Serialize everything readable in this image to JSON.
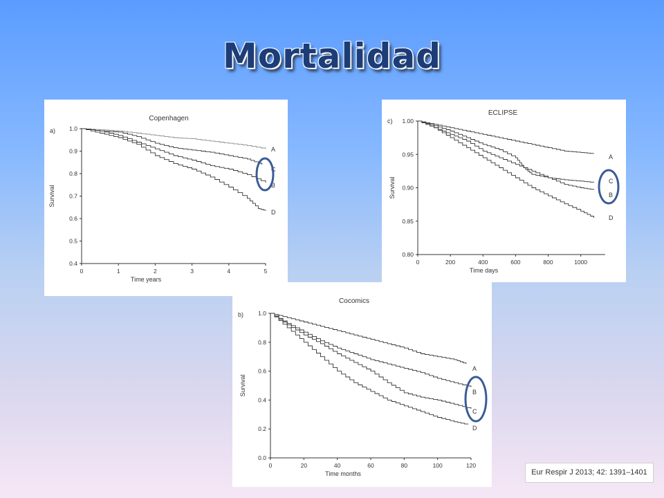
{
  "slide": {
    "title": "Mortalidad"
  },
  "citation": "Eur Respir J 2013; 42: 1391–1401",
  "colors": {
    "title": "#1c3d78",
    "highlight_ellipse": "#3a5b96",
    "curve": "#333333",
    "curve_light": "#888888"
  },
  "chart_data": [
    {
      "type": "line",
      "panel_label": "a)",
      "title": "Copenhagen",
      "xlabel": "Time years",
      "ylabel": "Survival",
      "xlim": [
        0,
        5
      ],
      "ylim": [
        0.4,
        1.0
      ],
      "xticks": [
        "0",
        "1",
        "2",
        "3",
        "4",
        "5"
      ],
      "yticks": [
        "0.4",
        "0.5",
        "0.6",
        "0.7",
        "0.8",
        "0.9",
        "1.0"
      ],
      "xtick_values": [
        0,
        1,
        2,
        3,
        4,
        5
      ],
      "ytick_values": [
        0.4,
        0.5,
        0.6,
        0.7,
        0.8,
        0.9,
        1.0
      ],
      "highlight": [
        "C",
        "B"
      ],
      "series": [
        {
          "name": "A",
          "points": [
            [
              0,
              1.0
            ],
            [
              0.5,
              0.995
            ],
            [
              1,
              0.99
            ],
            [
              1.5,
              0.98
            ],
            [
              2,
              0.97
            ],
            [
              2.5,
              0.96
            ],
            [
              3,
              0.955
            ],
            [
              3.5,
              0.945
            ],
            [
              4,
              0.935
            ],
            [
              4.5,
              0.925
            ],
            [
              5,
              0.91
            ]
          ]
        },
        {
          "name": "C",
          "points": [
            [
              0,
              1.0
            ],
            [
              0.5,
              0.99
            ],
            [
              1,
              0.985
            ],
            [
              1.5,
              0.965
            ],
            [
              2,
              0.935
            ],
            [
              2.5,
              0.915
            ],
            [
              3,
              0.905
            ],
            [
              3.5,
              0.895
            ],
            [
              4,
              0.88
            ],
            [
              4.5,
              0.865
            ],
            [
              4.9,
              0.84
            ]
          ]
        },
        {
          "name": "B",
          "points": [
            [
              0,
              1.0
            ],
            [
              0.5,
              0.99
            ],
            [
              1,
              0.97
            ],
            [
              1.5,
              0.94
            ],
            [
              2,
              0.91
            ],
            [
              2.5,
              0.88
            ],
            [
              3,
              0.86
            ],
            [
              3.5,
              0.835
            ],
            [
              4,
              0.82
            ],
            [
              4.5,
              0.795
            ],
            [
              5,
              0.76
            ]
          ]
        },
        {
          "name": "D",
          "points": [
            [
              0,
              1.0
            ],
            [
              0.5,
              0.98
            ],
            [
              1,
              0.96
            ],
            [
              1.5,
              0.93
            ],
            [
              2,
              0.88
            ],
            [
              2.5,
              0.845
            ],
            [
              3,
              0.82
            ],
            [
              3.5,
              0.785
            ],
            [
              4,
              0.74
            ],
            [
              4.5,
              0.69
            ],
            [
              4.8,
              0.645
            ],
            [
              5,
              0.635
            ]
          ]
        }
      ]
    },
    {
      "type": "line",
      "panel_label": "c)",
      "title": "ECLIPSE",
      "xlabel": "Time days",
      "ylabel": "Survival",
      "xlim": [
        0,
        1150
      ],
      "ylim": [
        0.8,
        1.0
      ],
      "xticks": [
        "0",
        "200",
        "400",
        "600",
        "800",
        "1000"
      ],
      "yticks": [
        "0.80",
        "0.85",
        "0.90",
        "0.95",
        "1.00"
      ],
      "xtick_values": [
        0,
        200,
        400,
        600,
        800,
        1000
      ],
      "ytick_values": [
        0.8,
        0.85,
        0.9,
        0.95,
        1.0
      ],
      "highlight": [
        "C",
        "B"
      ],
      "series": [
        {
          "name": "A",
          "points": [
            [
              0,
              1.0
            ],
            [
              100,
              0.995
            ],
            [
              200,
              0.99
            ],
            [
              300,
              0.985
            ],
            [
              400,
              0.98
            ],
            [
              500,
              0.975
            ],
            [
              600,
              0.97
            ],
            [
              700,
              0.965
            ],
            [
              800,
              0.96
            ],
            [
              900,
              0.955
            ],
            [
              1000,
              0.953
            ],
            [
              1080,
              0.951
            ]
          ]
        },
        {
          "name": "C",
          "points": [
            [
              0,
              1.0
            ],
            [
              100,
              0.993
            ],
            [
              200,
              0.985
            ],
            [
              300,
              0.975
            ],
            [
              400,
              0.965
            ],
            [
              500,
              0.957
            ],
            [
              600,
              0.945
            ],
            [
              650,
              0.93
            ],
            [
              700,
              0.92
            ],
            [
              800,
              0.915
            ],
            [
              900,
              0.912
            ],
            [
              1000,
              0.91
            ],
            [
              1080,
              0.908
            ]
          ]
        },
        {
          "name": "B",
          "points": [
            [
              0,
              1.0
            ],
            [
              100,
              0.99
            ],
            [
              200,
              0.98
            ],
            [
              300,
              0.97
            ],
            [
              400,
              0.955
            ],
            [
              500,
              0.945
            ],
            [
              600,
              0.935
            ],
            [
              700,
              0.925
            ],
            [
              800,
              0.915
            ],
            [
              900,
              0.905
            ],
            [
              1000,
              0.9
            ],
            [
              1080,
              0.897
            ]
          ]
        },
        {
          "name": "D",
          "points": [
            [
              0,
              1.0
            ],
            [
              100,
              0.99
            ],
            [
              200,
              0.975
            ],
            [
              300,
              0.96
            ],
            [
              400,
              0.945
            ],
            [
              500,
              0.93
            ],
            [
              600,
              0.915
            ],
            [
              700,
              0.9
            ],
            [
              800,
              0.888
            ],
            [
              900,
              0.876
            ],
            [
              1000,
              0.865
            ],
            [
              1080,
              0.855
            ]
          ]
        }
      ]
    },
    {
      "type": "line",
      "panel_label": "b)",
      "title": "Cocomics",
      "xlabel": "Time months",
      "ylabel": "Survival",
      "xlim": [
        0,
        120
      ],
      "ylim": [
        0.0,
        1.0
      ],
      "xticks": [
        "0",
        "20",
        "40",
        "60",
        "80",
        "100",
        "120"
      ],
      "yticks": [
        "0.0",
        "0.2",
        "0.4",
        "0.6",
        "0.8",
        "1.0"
      ],
      "xtick_values": [
        0,
        20,
        40,
        60,
        80,
        100,
        120
      ],
      "ytick_values": [
        0.0,
        0.2,
        0.4,
        0.6,
        0.8,
        1.0
      ],
      "highlight": [
        "B",
        "C"
      ],
      "series": [
        {
          "name": "A",
          "points": [
            [
              0,
              1.0
            ],
            [
              10,
              0.97
            ],
            [
              20,
              0.94
            ],
            [
              30,
              0.91
            ],
            [
              40,
              0.88
            ],
            [
              50,
              0.85
            ],
            [
              60,
              0.82
            ],
            [
              70,
              0.79
            ],
            [
              80,
              0.76
            ],
            [
              90,
              0.72
            ],
            [
              100,
              0.7
            ],
            [
              110,
              0.68
            ],
            [
              117,
              0.65
            ]
          ]
        },
        {
          "name": "B",
          "points": [
            [
              0,
              1.0
            ],
            [
              10,
              0.93
            ],
            [
              20,
              0.87
            ],
            [
              30,
              0.81
            ],
            [
              40,
              0.76
            ],
            [
              50,
              0.72
            ],
            [
              60,
              0.68
            ],
            [
              70,
              0.65
            ],
            [
              80,
              0.62
            ],
            [
              90,
              0.59
            ],
            [
              100,
              0.55
            ],
            [
              110,
              0.52
            ],
            [
              120,
              0.49
            ]
          ]
        },
        {
          "name": "C",
          "points": [
            [
              0,
              1.0
            ],
            [
              10,
              0.92
            ],
            [
              20,
              0.85
            ],
            [
              30,
              0.79
            ],
            [
              40,
              0.72
            ],
            [
              50,
              0.66
            ],
            [
              60,
              0.6
            ],
            [
              70,
              0.52
            ],
            [
              80,
              0.45
            ],
            [
              90,
              0.42
            ],
            [
              100,
              0.4
            ],
            [
              110,
              0.37
            ],
            [
              120,
              0.34
            ]
          ]
        },
        {
          "name": "D",
          "points": [
            [
              0,
              1.0
            ],
            [
              10,
              0.9
            ],
            [
              20,
              0.8
            ],
            [
              30,
              0.7
            ],
            [
              40,
              0.6
            ],
            [
              50,
              0.52
            ],
            [
              60,
              0.46
            ],
            [
              70,
              0.4
            ],
            [
              80,
              0.36
            ],
            [
              90,
              0.32
            ],
            [
              100,
              0.28
            ],
            [
              110,
              0.25
            ],
            [
              118,
              0.23
            ]
          ]
        }
      ]
    }
  ]
}
